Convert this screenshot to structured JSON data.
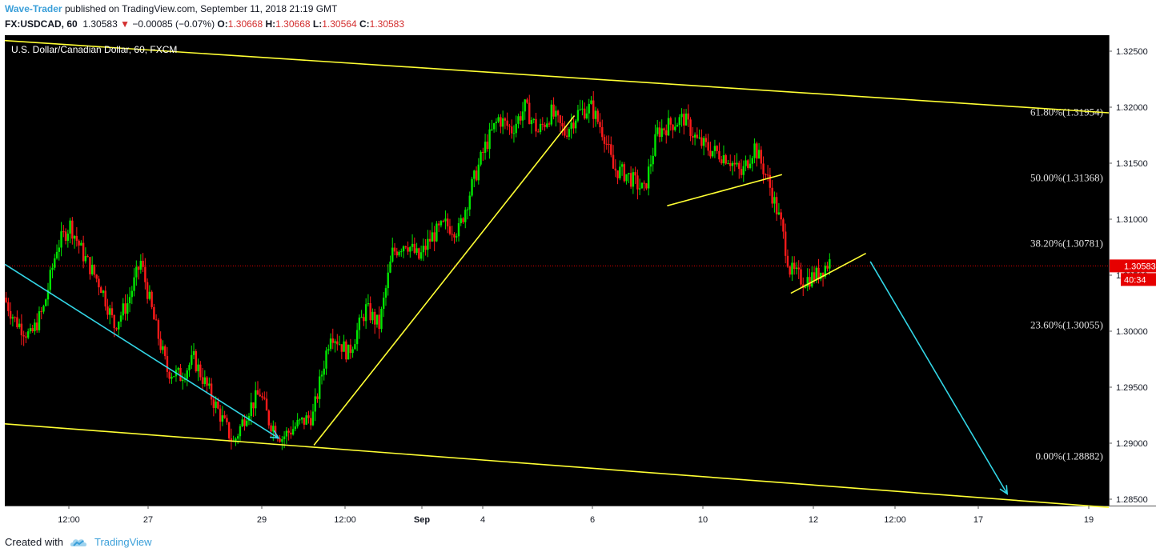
{
  "header": {
    "author": "Wave-Trader",
    "published": "published on TradingView.com, September 11, 2018 21:19 GMT",
    "symbol": "FX:USDCAD, 60",
    "last": "1.30583",
    "arrow": "▼",
    "change": "−0.00085 (−0.07%)",
    "o_label": "O:",
    "o_value": "1.30668",
    "h_label": "H:",
    "h_value": "1.30668",
    "l_label": "L:",
    "l_value": "1.30564",
    "c_label": "C:",
    "c_value": "1.30583"
  },
  "footer": {
    "created": "Created with",
    "brand": "TradingView"
  },
  "colors": {
    "background": "#000000",
    "up": "#00e600",
    "down": "#ff1a1a",
    "channel": "#ffff33",
    "arrow": "#33d6e6",
    "price": "#e60000"
  },
  "chart_data": {
    "type": "candlestick",
    "title": "U.S. Dollar/Canadian Dollar, 60, FXCM",
    "ylim": [
      1.2842,
      1.327
    ],
    "yticks": [
      "1.32500",
      "1.32000",
      "1.31500",
      "1.31000",
      "1.30500",
      "1.30000",
      "1.29500",
      "1.29000",
      "1.28500"
    ],
    "xticks": [
      "12:00",
      "27",
      "29",
      "12:00",
      "Sep",
      "4",
      "6",
      "10",
      "12",
      "12:00",
      "17",
      "19"
    ],
    "xtick_bold": "Sep",
    "last_price": "1.30583",
    "countdown": "40:34",
    "fib_levels": [
      {
        "label": "61.80%(1.31954)",
        "value": 1.31954
      },
      {
        "label": "50.00%(1.31368)",
        "value": 1.31368
      },
      {
        "label": "38.20%(1.30781)",
        "value": 1.30781
      },
      {
        "label": "23.60%(1.30055)",
        "value": 1.30055
      },
      {
        "label": "0.00%(1.28882)",
        "value": 1.28882
      }
    ],
    "path_points": [
      [
        0,
        1.303
      ],
      [
        5,
        1.301
      ],
      [
        12,
        1.2995
      ],
      [
        18,
        1.302
      ],
      [
        24,
        1.3075
      ],
      [
        30,
        1.3095
      ],
      [
        36,
        1.3068
      ],
      [
        44,
        1.304
      ],
      [
        50,
        1.3005
      ],
      [
        56,
        1.3025
      ],
      [
        62,
        1.3062
      ],
      [
        68,
        1.301
      ],
      [
        74,
        1.2965
      ],
      [
        80,
        1.296
      ],
      [
        86,
        1.2975
      ],
      [
        92,
        1.295
      ],
      [
        98,
        1.2925
      ],
      [
        104,
        1.29
      ],
      [
        110,
        1.2928
      ],
      [
        116,
        1.2945
      ],
      [
        120,
        1.292
      ],
      [
        126,
        1.2905
      ],
      [
        132,
        1.2915
      ],
      [
        140,
        1.2925
      ],
      [
        148,
        1.3
      ],
      [
        156,
        1.298
      ],
      [
        164,
        1.302
      ],
      [
        170,
        1.3005
      ],
      [
        176,
        1.307
      ],
      [
        182,
        1.308
      ],
      [
        188,
        1.3065
      ],
      [
        194,
        1.3085
      ],
      [
        200,
        1.3095
      ],
      [
        206,
        1.309
      ],
      [
        212,
        1.313
      ],
      [
        218,
        1.3165
      ],
      [
        224,
        1.319
      ],
      [
        230,
        1.318
      ],
      [
        236,
        1.32
      ],
      [
        242,
        1.3178
      ],
      [
        248,
        1.3195
      ],
      [
        254,
        1.3177
      ],
      [
        260,
        1.3195
      ],
      [
        266,
        1.32
      ],
      [
        272,
        1.3175
      ],
      [
        276,
        1.3145
      ],
      [
        282,
        1.314
      ],
      [
        290,
        1.3125
      ],
      [
        296,
        1.3178
      ],
      [
        302,
        1.3185
      ],
      [
        308,
        1.319
      ],
      [
        314,
        1.317
      ],
      [
        320,
        1.3162
      ],
      [
        328,
        1.3155
      ],
      [
        334,
        1.314
      ],
      [
        340,
        1.3165
      ],
      [
        346,
        1.3135
      ],
      [
        352,
        1.3095
      ],
      [
        356,
        1.3055
      ],
      [
        362,
        1.3045
      ],
      [
        368,
        1.305
      ],
      [
        374,
        1.3062
      ]
    ],
    "trendlines": [
      {
        "color": "channel",
        "from": [
          0,
          1.32595
        ],
        "to": [
          500,
          1.3195
        ]
      },
      {
        "color": "channel",
        "from": [
          0,
          1.29173
        ],
        "to": [
          500,
          1.28427
        ]
      },
      {
        "color": "channel",
        "from": [
          140,
          1.28982
        ],
        "to": [
          258,
          1.31925
        ]
      },
      {
        "color": "channel",
        "from": [
          300,
          1.3112
        ],
        "to": [
          352,
          1.31398
        ]
      },
      {
        "color": "channel",
        "from": [
          356,
          1.30339
        ],
        "to": [
          390,
          1.30695
        ]
      }
    ],
    "arrows": [
      {
        "color": "arrow",
        "from": [
          0,
          1.30598
        ],
        "to": [
          124,
          1.29045
        ]
      },
      {
        "color": "arrow",
        "from": [
          392,
          1.30622
        ],
        "to": [
          454,
          1.28548
        ]
      }
    ]
  }
}
